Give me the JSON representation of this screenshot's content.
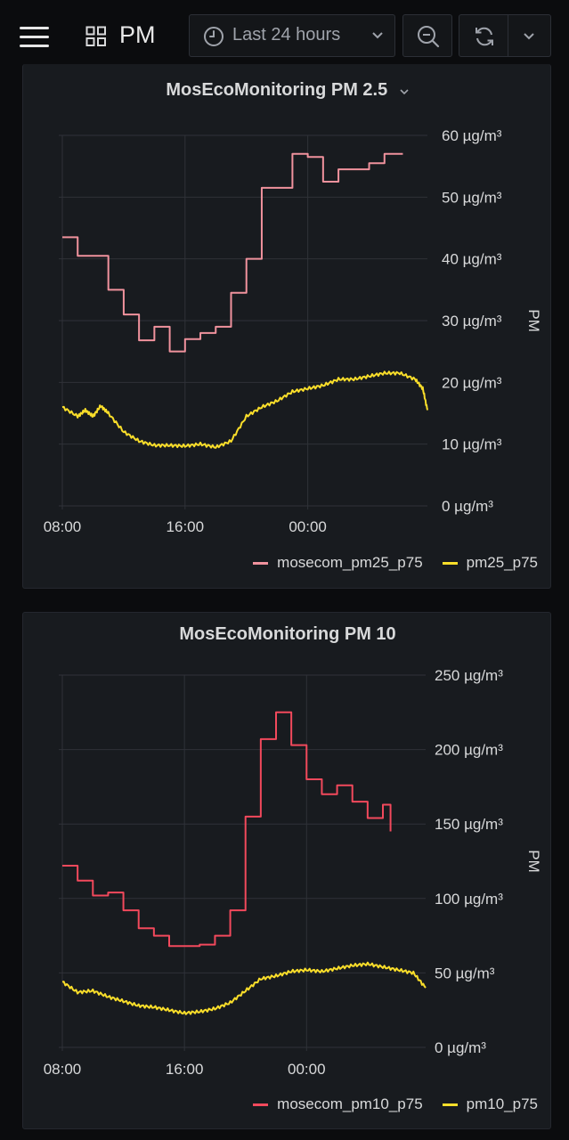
{
  "header": {
    "title": "PM",
    "time_range": "Last 24 hours"
  },
  "colors": {
    "pm25_p75": "#f2495c",
    "pm25_primary": "#f0929d",
    "yellow": "#fade2a"
  },
  "panels": [
    {
      "title": "MosEcoMonitoring PM 2.5",
      "legend": [
        "mosecom_pm25_p75",
        "pm25_p75"
      ]
    },
    {
      "title": "MosEcoMonitoring PM 10",
      "legend": [
        "mosecom_pm10_p75",
        "pm10_p75"
      ]
    }
  ],
  "chart_data": [
    {
      "type": "line",
      "title": "MosEcoMonitoring PM 2.5",
      "xlabel": "",
      "ylabel": "PM",
      "x_ticks": [
        "08:00",
        "16:00",
        "00:00"
      ],
      "y_ticks": [
        "0 µg/m³",
        "10 µg/m³",
        "20 µg/m³",
        "30 µg/m³",
        "40 µg/m³",
        "50 µg/m³",
        "60 µg/m³"
      ],
      "ylim": [
        0,
        60
      ],
      "xlim_hours": [
        0,
        24
      ],
      "series": [
        {
          "name": "mosecom_pm25_p75",
          "color": "#f0929d",
          "step": true,
          "x": [
            0,
            1,
            3,
            4,
            5,
            6,
            7,
            8,
            9,
            10,
            11,
            12,
            13,
            14,
            15,
            16,
            17,
            18,
            19,
            20,
            21,
            22,
            22.2
          ],
          "y": [
            43.5,
            40.5,
            35.0,
            31.0,
            26.8,
            29.0,
            25.0,
            27.0,
            28.0,
            29.0,
            34.5,
            40.0,
            51.5,
            51.5,
            57.0,
            56.5,
            52.5,
            54.5,
            54.5,
            55.5,
            57.0,
            57.0,
            57.0
          ]
        },
        {
          "name": "pm25_p75",
          "color": "#fade2a",
          "step": false,
          "x": [
            0,
            1,
            1.5,
            2,
            2.5,
            3,
            4,
            5,
            6,
            7,
            8,
            9,
            10,
            11,
            12,
            13,
            14,
            15,
            16,
            17,
            18,
            19,
            20,
            21,
            22,
            23,
            23.5,
            23.8
          ],
          "y": [
            16.0,
            14.5,
            15.5,
            14.5,
            16.2,
            15.0,
            12.0,
            10.5,
            9.8,
            9.8,
            9.7,
            10.0,
            9.5,
            10.5,
            14.5,
            16.0,
            17.0,
            18.5,
            19.0,
            19.5,
            20.5,
            20.5,
            21.0,
            21.5,
            21.5,
            20.5,
            19.0,
            15.5
          ]
        }
      ]
    },
    {
      "type": "line",
      "title": "MosEcoMonitoring PM 10",
      "xlabel": "",
      "ylabel": "PM",
      "x_ticks": [
        "08:00",
        "16:00",
        "00:00"
      ],
      "y_ticks": [
        "0 µg/m³",
        "50 µg/m³",
        "100 µg/m³",
        "150 µg/m³",
        "200 µg/m³",
        "250 µg/m³"
      ],
      "ylim": [
        0,
        250
      ],
      "xlim_hours": [
        0,
        24
      ],
      "series": [
        {
          "name": "mosecom_pm10_p75",
          "color": "#f2495c",
          "step": true,
          "x": [
            0,
            1,
            2,
            3,
            4,
            5,
            6,
            7,
            8,
            9,
            10,
            11,
            12,
            13,
            14,
            15,
            16,
            17,
            18,
            19,
            20,
            21,
            21.5
          ],
          "y": [
            122,
            112,
            102,
            104,
            92,
            80,
            75,
            68,
            68,
            69,
            75,
            92,
            155,
            207,
            225,
            203,
            180,
            170,
            176,
            165,
            154,
            163,
            145
          ]
        },
        {
          "name": "pm10_p75",
          "color": "#fade2a",
          "step": false,
          "x": [
            0,
            1,
            2,
            3,
            4,
            5,
            6,
            7,
            8,
            9,
            10,
            11,
            12,
            13,
            14,
            15,
            16,
            17,
            18,
            19,
            20,
            21,
            22,
            23,
            23.8
          ],
          "y": [
            44,
            37,
            38,
            34,
            31,
            28,
            27,
            25,
            23,
            24,
            26,
            30,
            38,
            46,
            48,
            51,
            52,
            51,
            53,
            55,
            56,
            54,
            52,
            50,
            40
          ]
        }
      ]
    }
  ]
}
